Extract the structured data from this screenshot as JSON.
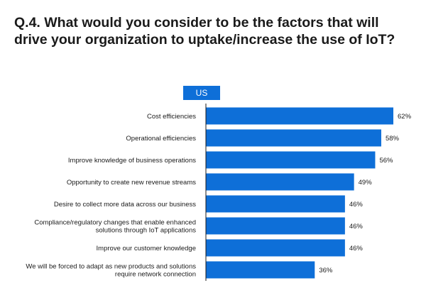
{
  "title_lines": [
    "Q.4. What would you consider to be the factors that will",
    "drive your organization to uptake/increase the use of IoT?"
  ],
  "colors": {
    "bar": "#0e6fd8",
    "axis": "#1a1a1a",
    "text": "#1a1a1a"
  },
  "chart_data": {
    "type": "bar",
    "orientation": "horizontal",
    "title": "Q.4. What would you consider to be the factors that will drive your organization to uptake/increase the use of IoT?",
    "categories": [
      "Cost efficiencies",
      "Operational efficiencies",
      "Improve knowledge of business operations",
      "Opportunity to create new revenue streams",
      "Desire to collect more data across our business",
      "Compliance/regulatory changes that enable enhanced solutions through IoT applications",
      "Improve our customer knowledge",
      "We will be forced to adapt as new products and solutions require network connection"
    ],
    "category_lines": [
      [
        "Cost efficiencies"
      ],
      [
        "Operational efficiencies"
      ],
      [
        "Improve knowledge of business operations"
      ],
      [
        "Opportunity to create new revenue streams"
      ],
      [
        "Desire to collect more data across our business"
      ],
      [
        "Compliance/regulatory changes that enable enhanced",
        "solutions through IoT applications"
      ],
      [
        "Improve our customer knowledge"
      ],
      [
        "We will be forced to adapt as new products and solutions",
        "require network connection"
      ]
    ],
    "series": [
      {
        "name": "US",
        "values": [
          62,
          58,
          56,
          49,
          46,
          46,
          46,
          36
        ],
        "value_labels": [
          "62%",
          "58%",
          "56%",
          "49%",
          "46%",
          "46%",
          "46%",
          "36%"
        ]
      }
    ],
    "xlim": [
      0,
      62
    ],
    "grid": false,
    "legend": "top-center"
  }
}
